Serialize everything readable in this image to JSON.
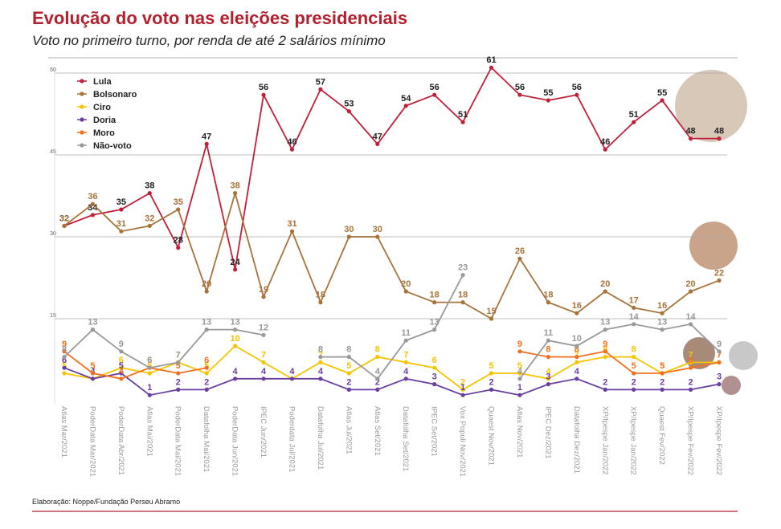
{
  "chart_data": {
    "type": "line",
    "title": "Evolução do voto nas eleições presidenciais",
    "subtitle": "Voto no primeiro turno, por renda de até 2 salários mínimo",
    "source": "Elaboração: Noppe/Fundação Perseu Abramo",
    "categories": [
      "Atlas Mar/2021",
      "PoderData Mar/2021",
      "PoderData Abr/2021",
      "Atlas Mai/2021",
      "PoderData Mai/2021",
      "Datafolha Mai/2021",
      "PoderData Jun/2021",
      "IPEC Jun/2021",
      "Poderdata Jul/2021",
      "Datafolha Jul/2021",
      "Atlas Jul/2021",
      "Atlas Set/2021",
      "Datafolha Set/2021",
      "IPEC Set/2021",
      "Vox Populi Nov/2021",
      "Quaest Nov/2021",
      "Atlas Nov/2021",
      "IPEC Dez/2021",
      "Datafolha Dez/2021",
      "XP/Ipespe Jan/2022",
      "XP/Ipespe Jan/2022",
      "Quaest Fev/2022",
      "XP/Ipespe Fev/2022",
      "XP/Ipespe Fev/2022"
    ],
    "series": [
      {
        "name": "Lula",
        "color": "#c0203a",
        "values": [
          32,
          34,
          35,
          38,
          28,
          47,
          24,
          56,
          46,
          57,
          53,
          47,
          54,
          56,
          51,
          61,
          56,
          55,
          56,
          46,
          51,
          55,
          48,
          48
        ]
      },
      {
        "name": "Bolsonaro",
        "color": "#a8733a",
        "values": [
          32,
          36,
          31,
          32,
          35,
          20,
          38,
          19,
          31,
          18,
          30,
          30,
          20,
          18,
          18,
          15,
          26,
          18,
          16,
          20,
          17,
          16,
          20,
          22
        ]
      },
      {
        "name": "Ciro",
        "color": "#f5c400",
        "values": [
          5,
          4,
          6,
          5,
          7,
          5,
          10,
          7,
          4,
          7,
          5,
          8,
          7,
          6,
          2,
          5,
          5,
          4,
          7,
          8,
          8,
          5,
          7,
          7
        ]
      },
      {
        "name": "Doria",
        "color": "#6b3fa0",
        "values": [
          6,
          4,
          5,
          1,
          2,
          2,
          4,
          4,
          4,
          4,
          2,
          2,
          4,
          3,
          1,
          2,
          1,
          3,
          4,
          2,
          2,
          2,
          2,
          3
        ]
      },
      {
        "name": "Moro",
        "color": "#f07020",
        "values": [
          9,
          5,
          4,
          6,
          5,
          6,
          null,
          null,
          null,
          null,
          null,
          null,
          null,
          null,
          null,
          null,
          9,
          8,
          8,
          9,
          5,
          5,
          6,
          7
        ]
      },
      {
        "name": "Não-voto",
        "color": "#999999",
        "values": [
          8,
          13,
          9,
          6,
          7,
          13,
          13,
          12,
          null,
          8,
          8,
          4,
          11,
          13,
          23,
          null,
          4,
          11,
          10,
          13,
          14,
          13,
          14,
          9
        ]
      }
    ],
    "ylim": [
      0,
      60
    ],
    "yticks": [
      15,
      30,
      45,
      60
    ],
    "grid": true
  }
}
